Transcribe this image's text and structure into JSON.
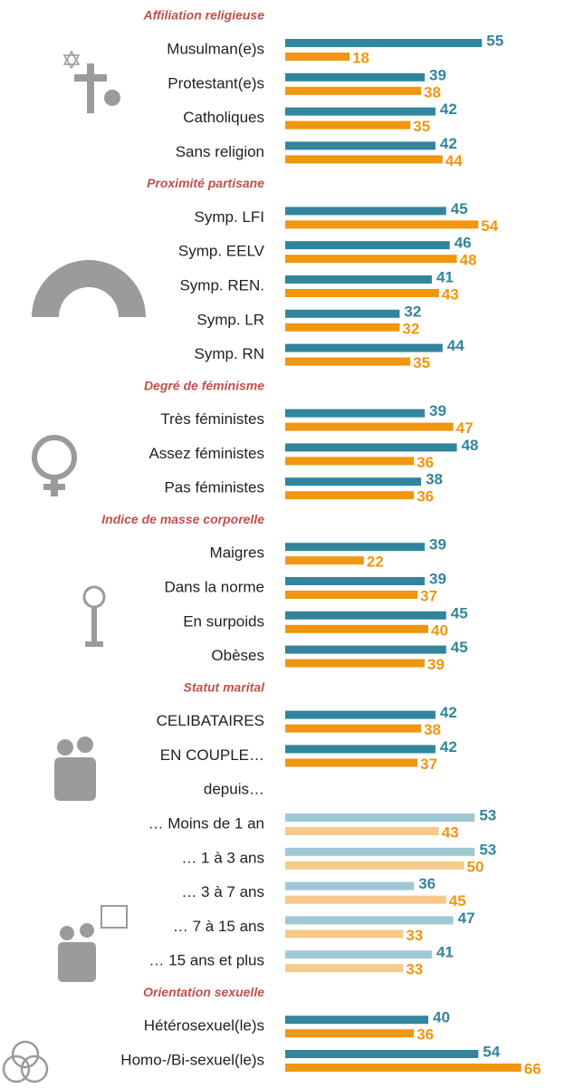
{
  "chart_data": {
    "type": "bar",
    "sections": [
      {
        "title": "Affiliation religieuse",
        "categories": [
          "Musulman(e)s",
          "Protestant(e)s",
          "Catholiques",
          "Sans religion"
        ],
        "series": [
          {
            "color": "#31859c",
            "values": [
              55,
              39,
              42,
              42
            ]
          },
          {
            "color": "#f0960f",
            "values": [
              18,
              38,
              35,
              44
            ]
          }
        ]
      },
      {
        "title": "Proximité partisane",
        "categories": [
          "Symp. LFI",
          "Symp. EELV",
          "Symp. REN.",
          "Symp. LR",
          "Symp. RN"
        ],
        "series": [
          {
            "color": "#31859c",
            "values": [
              45,
              46,
              41,
              32,
              44
            ]
          },
          {
            "color": "#f0960f",
            "values": [
              54,
              48,
              43,
              32,
              35
            ]
          }
        ]
      },
      {
        "title": "Degré de féminisme",
        "categories": [
          "Très féministes",
          "Assez féministes",
          "Pas féministes"
        ],
        "series": [
          {
            "color": "#31859c",
            "values": [
              39,
              48,
              38
            ]
          },
          {
            "color": "#f0960f",
            "values": [
              47,
              36,
              36
            ]
          }
        ]
      },
      {
        "title": "Indice de masse corporelle",
        "categories": [
          "Maigres",
          "Dans la norme",
          "En surpoids",
          "Obèses"
        ],
        "series": [
          {
            "color": "#31859c",
            "values": [
              39,
              39,
              45,
              45
            ]
          },
          {
            "color": "#f0960f",
            "values": [
              22,
              37,
              40,
              39
            ]
          }
        ]
      },
      {
        "title": "Statut marital",
        "categories": [
          "CELIBATAIRES",
          "EN COUPLE…"
        ],
        "series": [
          {
            "color": "#31859c",
            "values": [
              42,
              42
            ]
          },
          {
            "color": "#f0960f",
            "values": [
              38,
              37
            ]
          }
        ]
      },
      {
        "categories": [
          "depuis…",
          "… Moins de 1 an",
          "… 1 à 3 ans",
          "… 3 à 7 ans",
          "… 7 à 15 ans",
          "… 15 ans et plus"
        ],
        "series": [
          {
            "color": "#9fc8d5",
            "values": [
              null,
              53,
              53,
              36,
              47,
              41
            ]
          },
          {
            "color": "#f7c98b",
            "values": [
              null,
              43,
              50,
              45,
              33,
              33
            ]
          }
        ]
      },
      {
        "title": "Orientation sexuelle",
        "categories": [
          "Hétérosexuel(le)s",
          "Homo-/Bi-sexuel(le)s"
        ],
        "series": [
          {
            "color": "#31859c",
            "values": [
              40,
              54
            ]
          },
          {
            "color": "#f0960f",
            "values": [
              36,
              66
            ]
          }
        ]
      }
    ]
  }
}
